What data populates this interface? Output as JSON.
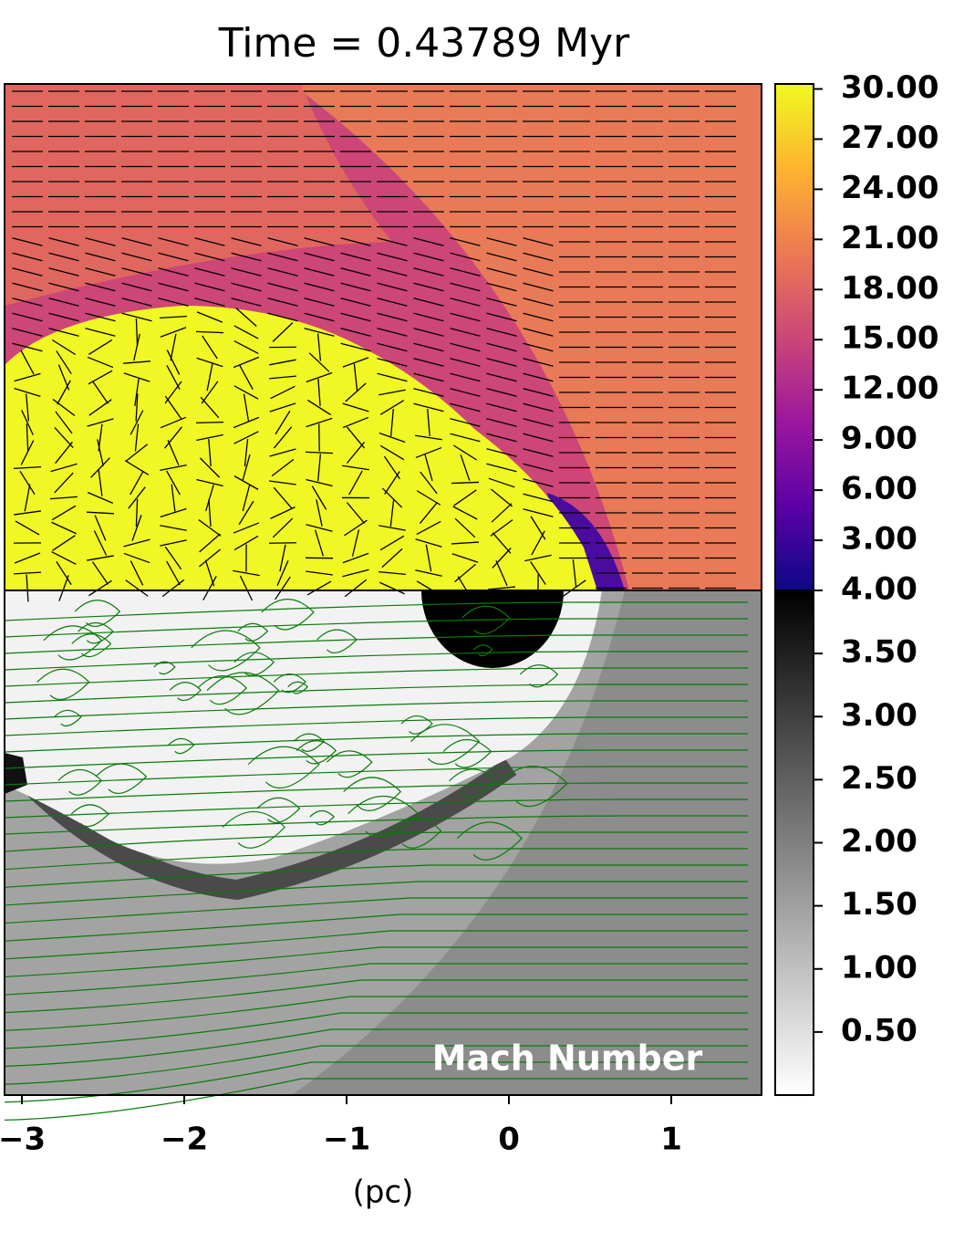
{
  "chart_data": {
    "type": "image",
    "title": "Time = 0.43789 Myr",
    "xlabel": "(pc)",
    "annotation": "Mach Number",
    "xlim": [
      -3.107,
      1.556
    ],
    "xticks": [
      {
        "value": -3,
        "label": "−3"
      },
      {
        "value": -2,
        "label": "−2"
      },
      {
        "value": -1,
        "label": "−1"
      },
      0,
      1
    ],
    "colorbars": [
      {
        "cmap": "plasma",
        "ylim": [
          0,
          30.3
        ],
        "yticks": [
          {
            "value": 30,
            "label": "30.00"
          },
          {
            "value": 27,
            "label": "27.00"
          },
          {
            "value": 24,
            "label": "24.00"
          },
          {
            "value": 21,
            "label": "21.00"
          },
          {
            "value": 18,
            "label": "18.00"
          },
          {
            "value": 15,
            "label": "15.00"
          },
          {
            "value": 12,
            "label": "12.00"
          },
          {
            "value": 9,
            "label": "9.00"
          },
          {
            "value": 6,
            "label": "6.00"
          },
          {
            "value": 3,
            "label": "3.00"
          }
        ]
      },
      {
        "cmap": "gray_r",
        "ylim": [
          0,
          4
        ],
        "yticks": [
          {
            "value": 4,
            "label": "4.00"
          },
          {
            "value": 3.5,
            "label": "3.50"
          },
          {
            "value": 3,
            "label": "3.00"
          },
          {
            "value": 2.5,
            "label": "2.50"
          },
          {
            "value": 2,
            "label": "2.00"
          },
          {
            "value": 1.5,
            "label": "1.50"
          },
          {
            "value": 1,
            "label": "1.00"
          },
          {
            "value": 0.5,
            "label": "0.50"
          }
        ]
      }
    ]
  }
}
